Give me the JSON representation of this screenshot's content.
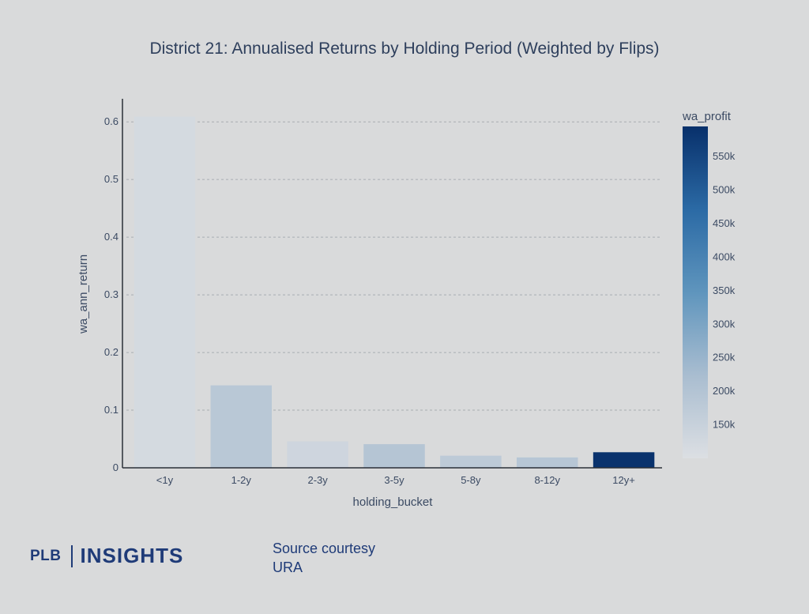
{
  "chart_data": {
    "type": "bar",
    "title": "District 21: Annualised Returns by Holding Period (Weighted by Flips)",
    "xlabel": "holding_bucket",
    "ylabel": "wa_ann_return",
    "categories": [
      "<1y",
      "1-2y",
      "2-3y",
      "3-5y",
      "5-8y",
      "8-12y",
      "12y+"
    ],
    "values": [
      0.609,
      0.143,
      0.046,
      0.041,
      0.021,
      0.018,
      0.027
    ],
    "color_values": [
      120000,
      185000,
      135000,
      195000,
      175000,
      190000,
      590000
    ],
    "ylim": [
      0,
      0.64
    ],
    "yticks": [
      0,
      0.1,
      0.2,
      0.3,
      0.4,
      0.5,
      0.6
    ],
    "ytick_labels": [
      "0",
      "0.1",
      "0.2",
      "0.3",
      "0.4",
      "0.5",
      "0.6"
    ],
    "grid": true,
    "colorbar": {
      "title": "wa_profit",
      "range": [
        100000,
        595000
      ],
      "ticks": [
        150000,
        200000,
        250000,
        300000,
        350000,
        400000,
        450000,
        500000,
        550000
      ],
      "tick_labels": [
        "150k",
        "200k",
        "250k",
        "300k",
        "350k",
        "400k",
        "450k",
        "500k",
        "550k"
      ],
      "colors": [
        "#dcdfe3",
        "#a9bdd0",
        "#5f95bd",
        "#2b6aa5",
        "#08306b"
      ]
    }
  },
  "footer": {
    "logo_left": "PLB",
    "logo_right": "INSIGHTS",
    "source_line1": "Source courtesy",
    "source_line2": "URA"
  }
}
